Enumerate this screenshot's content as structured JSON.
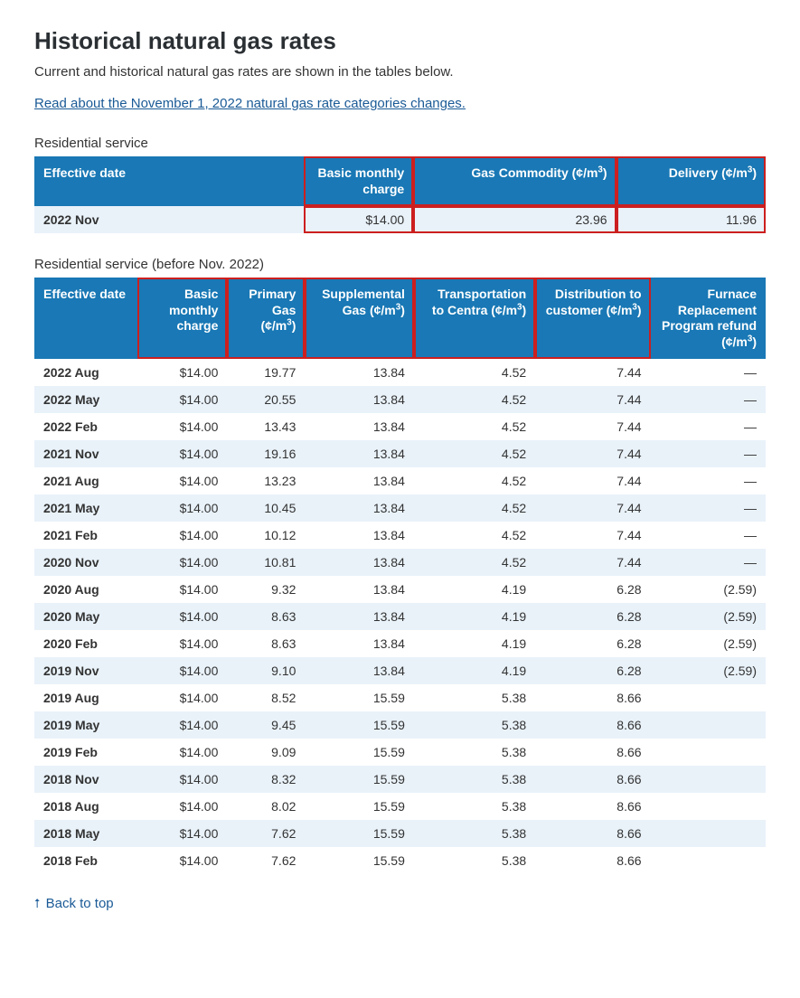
{
  "page": {
    "title": "Historical natural gas rates",
    "subtitle": "Current and historical natural gas rates are shown in the tables below.",
    "link_text": "Read about the November 1, 2022 natural gas rate categories changes.",
    "back_to_top": "Back to top"
  },
  "colors": {
    "header_bg": "#1978b5",
    "header_text": "#ffffff",
    "row_even_bg": "#e9f2f9",
    "row_odd_bg": "#ffffff",
    "highlight_border": "#cc1f1f",
    "link_color": "#1a5a96"
  },
  "table1": {
    "section_title": "Residential service",
    "columns": [
      {
        "label_plain": "Effective date",
        "align": "left",
        "width": "38%",
        "highlight": false
      },
      {
        "label_plain": "Basic monthly charge",
        "align": "right",
        "width": "14%",
        "highlight": true
      },
      {
        "label_html": "Gas Commodity (¢/m<sup>3</sup>)",
        "align": "right",
        "width": "28%",
        "highlight": true
      },
      {
        "label_html": "Delivery (¢/m<sup>3</sup>)",
        "align": "right",
        "width": "20%",
        "highlight": true
      }
    ],
    "rows": [
      {
        "cells": [
          "2022 Nov",
          "$14.00",
          "23.96",
          "11.96"
        ],
        "highlight_cells": [
          false,
          true,
          true,
          true
        ]
      }
    ]
  },
  "table2": {
    "section_title": "Residential service (before Nov. 2022)",
    "columns": [
      {
        "label_plain": "Effective date",
        "align": "left",
        "width": "14%",
        "highlight": false
      },
      {
        "label_html": "Basic monthly charge",
        "align": "right",
        "width": "12%",
        "highlight": true
      },
      {
        "label_html": "Primary Gas (¢/m<sup>3</sup>)",
        "align": "right",
        "width": "10%",
        "highlight": true
      },
      {
        "label_html": "Supplemental Gas (¢/m<sup>3</sup>)",
        "align": "right",
        "width": "15%",
        "highlight": true
      },
      {
        "label_html": "Transportation to Centra (¢/m<sup>3</sup>)",
        "align": "right",
        "width": "17%",
        "highlight": true
      },
      {
        "label_html": "Distribution to customer (¢/m<sup>3</sup>)",
        "align": "right",
        "width": "16%",
        "highlight": true
      },
      {
        "label_html": "Furnace Replacement Program refund (¢/m<sup>3</sup>)",
        "align": "right",
        "width": "16%",
        "highlight": false
      }
    ],
    "rows": [
      {
        "cells": [
          "2022 Aug",
          "$14.00",
          "19.77",
          "13.84",
          "4.52",
          "7.44",
          "—"
        ]
      },
      {
        "cells": [
          "2022 May",
          "$14.00",
          "20.55",
          "13.84",
          "4.52",
          "7.44",
          "—"
        ]
      },
      {
        "cells": [
          "2022 Feb",
          "$14.00",
          "13.43",
          "13.84",
          "4.52",
          "7.44",
          "—"
        ]
      },
      {
        "cells": [
          "2021 Nov",
          "$14.00",
          "19.16",
          "13.84",
          "4.52",
          "7.44",
          "—"
        ]
      },
      {
        "cells": [
          "2021 Aug",
          "$14.00",
          "13.23",
          "13.84",
          "4.52",
          "7.44",
          "—"
        ]
      },
      {
        "cells": [
          "2021 May",
          "$14.00",
          "10.45",
          "13.84",
          "4.52",
          "7.44",
          "—"
        ]
      },
      {
        "cells": [
          "2021 Feb",
          "$14.00",
          "10.12",
          "13.84",
          "4.52",
          "7.44",
          "—"
        ]
      },
      {
        "cells": [
          "2020 Nov",
          "$14.00",
          "10.81",
          "13.84",
          "4.52",
          "7.44",
          "—"
        ]
      },
      {
        "cells": [
          "2020 Aug",
          "$14.00",
          "9.32",
          "13.84",
          "4.19",
          "6.28",
          "(2.59)"
        ]
      },
      {
        "cells": [
          "2020 May",
          "$14.00",
          "8.63",
          "13.84",
          "4.19",
          "6.28",
          "(2.59)"
        ]
      },
      {
        "cells": [
          "2020 Feb",
          "$14.00",
          "8.63",
          "13.84",
          "4.19",
          "6.28",
          "(2.59)"
        ]
      },
      {
        "cells": [
          "2019 Nov",
          "$14.00",
          "9.10",
          "13.84",
          "4.19",
          "6.28",
          "(2.59)"
        ]
      },
      {
        "cells": [
          "2019 Aug",
          "$14.00",
          "8.52",
          "15.59",
          "5.38",
          "8.66",
          ""
        ]
      },
      {
        "cells": [
          "2019 May",
          "$14.00",
          "9.45",
          "15.59",
          "5.38",
          "8.66",
          ""
        ]
      },
      {
        "cells": [
          "2019 Feb",
          "$14.00",
          "9.09",
          "15.59",
          "5.38",
          "8.66",
          ""
        ]
      },
      {
        "cells": [
          "2018 Nov",
          "$14.00",
          "8.32",
          "15.59",
          "5.38",
          "8.66",
          ""
        ]
      },
      {
        "cells": [
          "2018 Aug",
          "$14.00",
          "8.02",
          "15.59",
          "5.38",
          "8.66",
          ""
        ]
      },
      {
        "cells": [
          "2018 May",
          "$14.00",
          "7.62",
          "15.59",
          "5.38",
          "8.66",
          ""
        ]
      },
      {
        "cells": [
          "2018 Feb",
          "$14.00",
          "7.62",
          "15.59",
          "5.38",
          "8.66",
          ""
        ]
      }
    ]
  }
}
